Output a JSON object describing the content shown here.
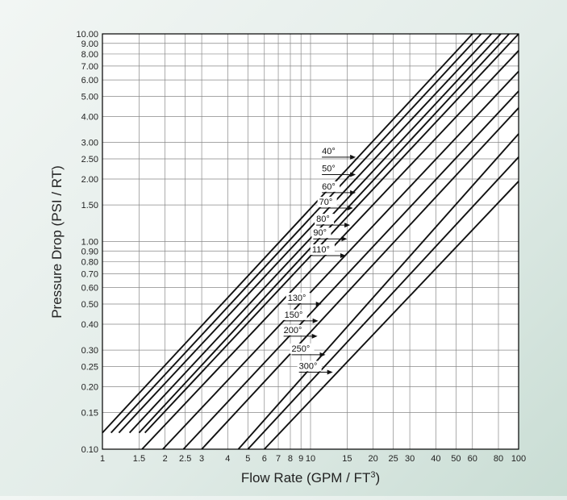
{
  "chart_data": {
    "type": "line",
    "xlabel": "Flow Rate (GPM / FT",
    "xlabel_superscript": "3",
    "xlabel_close": ")",
    "ylabel": "Pressure Drop (PSI / RT)",
    "x_scale": "log",
    "y_scale": "log",
    "xlim": [
      1,
      100
    ],
    "ylim": [
      0.1,
      10
    ],
    "grid": true,
    "legend": "inline labels with arrows",
    "x_ticks": [
      {
        "v": 1,
        "t": "1"
      },
      {
        "v": 1.5,
        "t": "1.5"
      },
      {
        "v": 2,
        "t": "2"
      },
      {
        "v": 2.5,
        "t": "2.5"
      },
      {
        "v": 3,
        "t": "3"
      },
      {
        "v": 4,
        "t": "4"
      },
      {
        "v": 5,
        "t": "5"
      },
      {
        "v": 6,
        "t": "6"
      },
      {
        "v": 7,
        "t": "7"
      },
      {
        "v": 8,
        "t": "8"
      },
      {
        "v": 9,
        "t": "9"
      },
      {
        "v": 10,
        "t": "10"
      },
      {
        "v": 15,
        "t": "15"
      },
      {
        "v": 20,
        "t": "20"
      },
      {
        "v": 25,
        "t": "25"
      },
      {
        "v": 30,
        "t": "30"
      },
      {
        "v": 40,
        "t": "40"
      },
      {
        "v": 50,
        "t": "50"
      },
      {
        "v": 60,
        "t": "60"
      },
      {
        "v": 80,
        "t": "80"
      },
      {
        "v": 100,
        "t": "100"
      }
    ],
    "y_ticks": [
      {
        "v": 0.1,
        "t": "0.10"
      },
      {
        "v": 0.15,
        "t": "0.15"
      },
      {
        "v": 0.2,
        "t": "0.20"
      },
      {
        "v": 0.25,
        "t": "0.25"
      },
      {
        "v": 0.3,
        "t": "0.30"
      },
      {
        "v": 0.4,
        "t": "0.40"
      },
      {
        "v": 0.5,
        "t": "0.50"
      },
      {
        "v": 0.6,
        "t": "0.60"
      },
      {
        "v": 0.7,
        "t": "0.70"
      },
      {
        "v": 0.8,
        "t": "0.80"
      },
      {
        "v": 0.9,
        "t": "0.90"
      },
      {
        "v": 1,
        "t": "1.00"
      },
      {
        "v": 1.5,
        "t": "1.50"
      },
      {
        "v": 2,
        "t": "2.00"
      },
      {
        "v": 2.5,
        "t": "2.50"
      },
      {
        "v": 3,
        "t": "3.00"
      },
      {
        "v": 4,
        "t": "4.00"
      },
      {
        "v": 5,
        "t": "5.00"
      },
      {
        "v": 6,
        "t": "6.00"
      },
      {
        "v": 7,
        "t": "7.00"
      },
      {
        "v": 8,
        "t": "8.00"
      },
      {
        "v": 9,
        "t": "9.00"
      },
      {
        "v": 10,
        "t": "10.00"
      }
    ],
    "series": [
      {
        "name": "40°",
        "x": [
          1.0,
          60
        ],
        "y": [
          0.12,
          10
        ]
      },
      {
        "name": "50°",
        "x": [
          1.1,
          66
        ],
        "y": [
          0.12,
          10
        ]
      },
      {
        "name": "60°",
        "x": [
          1.2,
          74
        ],
        "y": [
          0.12,
          10
        ]
      },
      {
        "name": "70°",
        "x": [
          1.35,
          82
        ],
        "y": [
          0.12,
          10
        ]
      },
      {
        "name": "80°",
        "x": [
          1.5,
          90
        ],
        "y": [
          0.12,
          10
        ]
      },
      {
        "name": "90°",
        "x": [
          1.6,
          100
        ],
        "y": [
          0.12,
          10
        ]
      },
      {
        "name": "110°",
        "x": [
          1.55,
          100
        ],
        "y": [
          0.1,
          8.3
        ]
      },
      {
        "name": "130°",
        "x": [
          1.95,
          100
        ],
        "y": [
          0.1,
          6.6
        ]
      },
      {
        "name": "150°",
        "x": [
          2.45,
          100
        ],
        "y": [
          0.1,
          5.3
        ]
      },
      {
        "name": "200°",
        "x": [
          3.0,
          100
        ],
        "y": [
          0.1,
          4.4
        ]
      },
      {
        "name": "250°",
        "x": [
          4.5,
          100
        ],
        "y": [
          0.1,
          3.3
        ]
      },
      {
        "name": "300°",
        "x": [
          5.0,
          100
        ],
        "y": [
          0.1,
          2.55
        ]
      },
      {
        "name": "",
        "x": [
          6.0,
          100
        ],
        "y": [
          0.1,
          1.95
        ]
      }
    ],
    "annotations": [
      {
        "text": "40°",
        "x": 16.5,
        "y": 2.55
      },
      {
        "text": "50°",
        "x": 16.5,
        "y": 2.1
      },
      {
        "text": "60°",
        "x": 16.5,
        "y": 1.72
      },
      {
        "text": "70°",
        "x": 16.0,
        "y": 1.45
      },
      {
        "text": "80°",
        "x": 15.5,
        "y": 1.2
      },
      {
        "text": "90°",
        "x": 15.0,
        "y": 1.03
      },
      {
        "text": "110°",
        "x": 14.8,
        "y": 0.855
      },
      {
        "text": "130°",
        "x": 11.3,
        "y": 0.5
      },
      {
        "text": "150°",
        "x": 10.9,
        "y": 0.415
      },
      {
        "text": "200°",
        "x": 10.8,
        "y": 0.35
      },
      {
        "text": "250°",
        "x": 11.8,
        "y": 0.285
      },
      {
        "text": "300°",
        "x": 12.8,
        "y": 0.235
      }
    ]
  }
}
